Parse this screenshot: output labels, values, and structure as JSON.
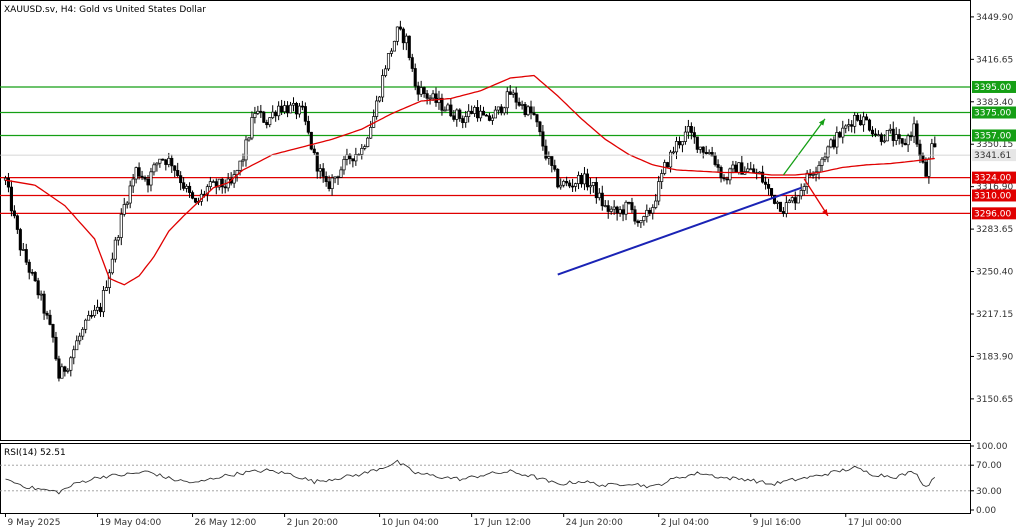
{
  "chart_data": [
    {
      "type": "candlestick",
      "title": "XAUUSD.sv, H4:  Gold vs United States Dollar",
      "ylim": [
        3120.0,
        3460.0
      ],
      "y_ticks": [
        "3449.90",
        "3416.65",
        "3383.40",
        "3350.15",
        "3316.90",
        "3283.65",
        "3250.40",
        "3217.15",
        "3183.90",
        "3150.65"
      ],
      "y_tick_values": [
        3449.9,
        3416.65,
        3383.4,
        3350.15,
        3316.9,
        3283.65,
        3250.4,
        3217.15,
        3183.9,
        3150.65
      ],
      "x_ticks": [
        "9 May 2025",
        "19 May 04:00",
        "26 May 12:00",
        "2 Jun 20:00",
        "10 Jun 04:00",
        "17 Jun 12:00",
        "24 Jun 20:00",
        "2 Jul 04:00",
        "9 Jul 16:00",
        "17 Jul 00:00"
      ],
      "bar_count": 314,
      "close_anchors": [
        [
          0,
          3322
        ],
        [
          5,
          3270
        ],
        [
          12,
          3228
        ],
        [
          16,
          3198
        ],
        [
          18,
          3168
        ],
        [
          21,
          3178
        ],
        [
          24,
          3195
        ],
        [
          28,
          3212
        ],
        [
          32,
          3222
        ],
        [
          36,
          3262
        ],
        [
          40,
          3302
        ],
        [
          44,
          3330
        ],
        [
          48,
          3322
        ],
        [
          52,
          3340
        ],
        [
          56,
          3336
        ],
        [
          60,
          3318
        ],
        [
          64,
          3302
        ],
        [
          68,
          3316
        ],
        [
          72,
          3318
        ],
        [
          76,
          3318
        ],
        [
          80,
          3340
        ],
        [
          84,
          3376
        ],
        [
          88,
          3368
        ],
        [
          92,
          3380
        ],
        [
          96,
          3378
        ],
        [
          100,
          3375
        ],
        [
          104,
          3340
        ],
        [
          108,
          3316
        ],
        [
          112,
          3328
        ],
        [
          116,
          3340
        ],
        [
          120,
          3346
        ],
        [
          124,
          3372
        ],
        [
          128,
          3412
        ],
        [
          132,
          3438
        ],
        [
          135,
          3432
        ],
        [
          138,
          3396
        ],
        [
          142,
          3388
        ],
        [
          146,
          3382
        ],
        [
          150,
          3376
        ],
        [
          154,
          3370
        ],
        [
          158,
          3378
        ],
        [
          162,
          3368
        ],
        [
          166,
          3376
        ],
        [
          170,
          3390
        ],
        [
          174,
          3380
        ],
        [
          178,
          3372
        ],
        [
          182,
          3342
        ],
        [
          186,
          3320
        ],
        [
          190,
          3318
        ],
        [
          194,
          3324
        ],
        [
          198,
          3316
        ],
        [
          202,
          3300
        ],
        [
          206,
          3296
        ],
        [
          210,
          3302
        ],
        [
          214,
          3286
        ],
        [
          218,
          3302
        ],
        [
          222,
          3332
        ],
        [
          226,
          3350
        ],
        [
          230,
          3360
        ],
        [
          234,
          3348
        ],
        [
          238,
          3342
        ],
        [
          242,
          3322
        ],
        [
          246,
          3332
        ],
        [
          250,
          3330
        ],
        [
          254,
          3326
        ],
        [
          258,
          3310
        ],
        [
          262,
          3300
        ],
        [
          266,
          3308
        ],
        [
          270,
          3324
        ],
        [
          274,
          3336
        ],
        [
          278,
          3350
        ],
        [
          282,
          3360
        ],
        [
          286,
          3372
        ],
        [
          290,
          3368
        ],
        [
          294,
          3356
        ],
        [
          298,
          3358
        ],
        [
          302,
          3348
        ],
        [
          306,
          3364
        ],
        [
          308,
          3340
        ],
        [
          310,
          3326
        ],
        [
          312,
          3346
        ],
        [
          313,
          3345
        ]
      ],
      "ma_series_color": "#e00000",
      "ma_anchors": [
        [
          0,
          3322
        ],
        [
          10,
          3318
        ],
        [
          20,
          3302
        ],
        [
          30,
          3276
        ],
        [
          35,
          3245
        ],
        [
          40,
          3240
        ],
        [
          45,
          3247
        ],
        [
          50,
          3262
        ],
        [
          55,
          3282
        ],
        [
          60,
          3294
        ],
        [
          65,
          3305
        ],
        [
          70,
          3316
        ],
        [
          75,
          3320
        ],
        [
          80,
          3330
        ],
        [
          90,
          3342
        ],
        [
          100,
          3348
        ],
        [
          110,
          3354
        ],
        [
          120,
          3362
        ],
        [
          130,
          3374
        ],
        [
          140,
          3384
        ],
        [
          150,
          3386
        ],
        [
          160,
          3392
        ],
        [
          170,
          3402
        ],
        [
          178,
          3404
        ],
        [
          186,
          3388
        ],
        [
          194,
          3370
        ],
        [
          202,
          3354
        ],
        [
          210,
          3342
        ],
        [
          218,
          3334
        ],
        [
          226,
          3330
        ],
        [
          234,
          3329
        ],
        [
          242,
          3328
        ],
        [
          250,
          3328
        ],
        [
          258,
          3326
        ],
        [
          266,
          3326
        ],
        [
          274,
          3328
        ],
        [
          282,
          3332
        ],
        [
          290,
          3334
        ],
        [
          298,
          3335
        ],
        [
          306,
          3337
        ],
        [
          313,
          3339
        ]
      ],
      "horizontal_levels": [
        {
          "label": "3395.00",
          "value": 3395.0,
          "color": "#159f15"
        },
        {
          "label": "3375.00",
          "value": 3375.0,
          "color": "#159f15"
        },
        {
          "label": "3357.00",
          "value": 3357.0,
          "color": "#159f15"
        },
        {
          "label": "3324.00",
          "value": 3324.0,
          "color": "#e00000"
        },
        {
          "label": "3310.00",
          "value": 3310.0,
          "color": "#e00000"
        },
        {
          "label": "3296.00",
          "value": 3296.0,
          "color": "#e00000"
        }
      ],
      "current_price": {
        "label": "3341.61",
        "value": 3341.61
      },
      "trendline": {
        "color": "#1a23b5",
        "x_bars": [
          186,
          268
        ],
        "y_values": [
          3248.0,
          3316.0
        ]
      },
      "arrows": [
        {
          "direction": "up",
          "color": "#159f15",
          "x_bars": [
            262,
            276
          ],
          "y_values": [
            3326.0,
            3370.0
          ]
        },
        {
          "direction": "down",
          "color": "#e00000",
          "x_bars": [
            269,
            277
          ],
          "y_values": [
            3323.0,
            3294.0
          ]
        }
      ],
      "grid": false
    },
    {
      "type": "line",
      "title": "RSI(14) 52.51",
      "ylim": [
        0,
        100
      ],
      "y_ticks": [
        "100.00",
        "70.00",
        "30.00",
        "0.00"
      ],
      "y_tick_values": [
        100,
        70,
        30,
        0
      ],
      "levels": [
        70,
        30
      ],
      "series_color": "#333333",
      "rsi_anchors": [
        [
          0,
          48
        ],
        [
          8,
          35
        ],
        [
          18,
          28
        ],
        [
          24,
          42
        ],
        [
          32,
          52
        ],
        [
          40,
          55
        ],
        [
          48,
          60
        ],
        [
          56,
          48
        ],
        [
          64,
          42
        ],
        [
          72,
          52
        ],
        [
          80,
          58
        ],
        [
          88,
          62
        ],
        [
          96,
          56
        ],
        [
          104,
          44
        ],
        [
          112,
          50
        ],
        [
          120,
          56
        ],
        [
          128,
          68
        ],
        [
          132,
          75
        ],
        [
          138,
          58
        ],
        [
          146,
          52
        ],
        [
          154,
          48
        ],
        [
          162,
          56
        ],
        [
          170,
          60
        ],
        [
          178,
          52
        ],
        [
          186,
          40
        ],
        [
          194,
          45
        ],
        [
          202,
          38
        ],
        [
          210,
          42
        ],
        [
          218,
          36
        ],
        [
          226,
          50
        ],
        [
          234,
          58
        ],
        [
          242,
          50
        ],
        [
          250,
          48
        ],
        [
          258,
          40
        ],
        [
          264,
          46
        ],
        [
          272,
          52
        ],
        [
          280,
          60
        ],
        [
          286,
          66
        ],
        [
          292,
          56
        ],
        [
          300,
          52
        ],
        [
          306,
          60
        ],
        [
          310,
          36
        ],
        [
          313,
          52
        ]
      ],
      "current_value": 52.51
    }
  ]
}
